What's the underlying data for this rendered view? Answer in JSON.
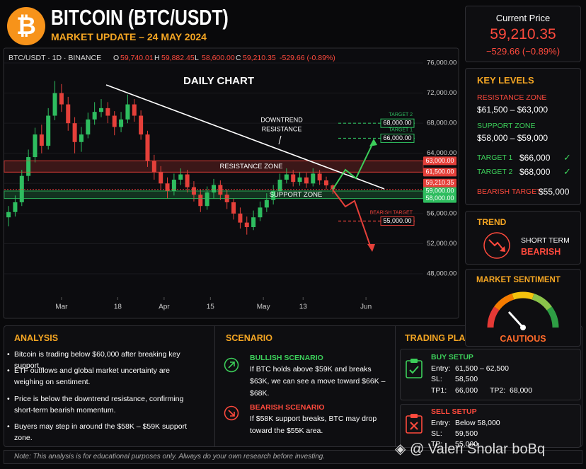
{
  "header": {
    "logo": "₿",
    "title": "BITCOIN (BTC/USDT)",
    "subtitle": "MARKET UPDATE – 24 MAY 2024"
  },
  "current_price": {
    "label": "Current Price",
    "price": "59,210.35",
    "change": "−529.66 (−0.89%)"
  },
  "key_levels": {
    "title": "KEY LEVELS",
    "resistance": {
      "label": "RESISTANCE ZONE",
      "value": "$61,500 – $63,000"
    },
    "support": {
      "label": "SUPPORT ZONE",
      "value": "$58,000 – $59,000"
    },
    "target1": {
      "label": "TARGET 1",
      "value": "$66,000"
    },
    "target2": {
      "label": "TARGET 2",
      "value": "$68,000"
    },
    "bearish": {
      "label": "BEARISH TARGET",
      "value": "$55,000"
    }
  },
  "trend": {
    "title": "TREND",
    "label": "SHORT TERM",
    "value": "BEARISH"
  },
  "sentiment": {
    "title": "MARKET SENTIMENT",
    "value": "CAUTIOUS"
  },
  "analysis": {
    "title": "ANALYSIS",
    "points": [
      "Bitcoin is trading below $60,000 after breaking key support.",
      "ETF outflows and global market uncertainty are weighing on sentiment.",
      "Price is below the downtrend resistance, confirming short-term bearish momentum.",
      "Buyers may step in around the $58K – $59K support zone."
    ]
  },
  "scenario": {
    "title": "SCENARIO",
    "bullish": {
      "title": "BULLISH SCENARIO",
      "text": "If BTC holds above $59K and breaks $63K, we can see a move toward $66K – $68K."
    },
    "bearish": {
      "title": "BEARISH SCENARIO",
      "text": "If $58K support breaks, BTC may drop toward the $55K area."
    }
  },
  "trading_plan": {
    "title": "TRADING PLAN",
    "buy": {
      "title": "BUY SETUP",
      "entry_label": "Entry:",
      "entry": "61,500 – 62,500",
      "sl_label": "SL:",
      "sl": "58,500",
      "tp1_label": "TP1:",
      "tp1": "66,000",
      "tp2_label": "TP2:",
      "tp2": "68,000"
    },
    "sell": {
      "title": "SELL SETUP",
      "entry_label": "Entry:",
      "entry": "Below 58,000",
      "sl_label": "SL:",
      "sl": "59,500",
      "tp_label": "TP:",
      "tp": "55,000"
    }
  },
  "note": "Note: This analysis is for educational purposes only. Always do your own research before investing.",
  "watermark": "@ Valeri Sholar boBq",
  "chart_data": {
    "type": "candlestick",
    "title": "DAILY CHART",
    "symbol": "BTC/USDT · 1D · BINANCE",
    "ohlc": [
      {
        "label": "O",
        "value": "59,740.01"
      },
      {
        "label": "H",
        "value": "59,882.45"
      },
      {
        "label": "L",
        "value": "58,600.00"
      },
      {
        "label": "C",
        "value": "59,210.35"
      }
    ],
    "change": "-529.66 (-0.89%)",
    "up_color": "#2ebd5f",
    "down_color": "#e5403a",
    "x": [
      -16,
      -14,
      -12,
      -10,
      -8,
      -6,
      -4,
      -2,
      0,
      2,
      4,
      6,
      8,
      10,
      12,
      14,
      16,
      18,
      20,
      22,
      24,
      26,
      28,
      30,
      32,
      34,
      36,
      38,
      40,
      42,
      44,
      46,
      48,
      50,
      52,
      54,
      56,
      58,
      60,
      62,
      64,
      66,
      68,
      70,
      72,
      74,
      76,
      78,
      80,
      82
    ],
    "open": [
      55500,
      56200,
      57500,
      61000,
      63500,
      66500,
      65000,
      69000,
      72000,
      70500,
      68000,
      65500,
      66500,
      68500,
      69500,
      70000,
      69000,
      67500,
      68500,
      70500,
      69000,
      66500,
      63000,
      61500,
      60000,
      59000,
      60500,
      61200,
      59500,
      58500,
      57000,
      58800,
      59800,
      58500,
      57500,
      56000,
      54800,
      54200,
      55500,
      56800,
      57800,
      59000,
      60500,
      61200,
      60200,
      60800,
      60000,
      61300,
      60400,
      59740.01
    ],
    "high": [
      57000,
      58400,
      61800,
      64500,
      67400,
      67800,
      70000,
      73600,
      73200,
      71500,
      68800,
      67500,
      69400,
      70800,
      71200,
      70800,
      69600,
      69500,
      71800,
      71200,
      69700,
      67000,
      63800,
      62300,
      60800,
      61300,
      62000,
      61800,
      60300,
      59200,
      59600,
      60600,
      60400,
      59200,
      58000,
      56800,
      55600,
      56400,
      57600,
      58700,
      59800,
      61300,
      62000,
      61800,
      61500,
      61400,
      62000,
      61800,
      60900,
      59882.45
    ],
    "low": [
      54300,
      55600,
      57000,
      60300,
      62800,
      64000,
      64500,
      68400,
      69500,
      67000,
      64000,
      64200,
      66000,
      67800,
      68800,
      68000,
      66400,
      66800,
      68000,
      68200,
      65800,
      62200,
      60500,
      59200,
      58000,
      58400,
      59800,
      58800,
      57600,
      56200,
      56500,
      58000,
      57800,
      56600,
      55200,
      54000,
      53200,
      53800,
      55000,
      56200,
      57200,
      58500,
      60000,
      59600,
      59700,
      59400,
      59600,
      59800,
      59200,
      58600
    ],
    "close": [
      56200,
      57500,
      61000,
      63500,
      66500,
      65000,
      69000,
      72000,
      70500,
      68000,
      65500,
      66500,
      68500,
      69500,
      70000,
      69000,
      67500,
      68500,
      70500,
      69000,
      66500,
      63000,
      61500,
      60000,
      59000,
      60500,
      61200,
      59500,
      58500,
      57000,
      58800,
      59800,
      58500,
      57500,
      56000,
      54800,
      54200,
      55500,
      56800,
      57800,
      59000,
      60500,
      61200,
      60200,
      60800,
      60000,
      61300,
      60400,
      59740.01,
      59210.35
    ],
    "xlim": [
      -17.3,
      109.3
    ],
    "xticks": [
      {
        "value": 0,
        "label": "Mar"
      },
      {
        "value": 17,
        "label": "18"
      },
      {
        "value": 31,
        "label": "Apr"
      },
      {
        "value": 45,
        "label": "15"
      },
      {
        "value": 61,
        "label": "May"
      },
      {
        "value": 73,
        "label": "13"
      },
      {
        "value": 92,
        "label": "Jun"
      }
    ],
    "ylim": [
      44900,
      77600
    ],
    "yticks": [
      {
        "value": 48000,
        "label": "48,000.00"
      },
      {
        "value": 52000,
        "label": "52,000.00"
      },
      {
        "value": 56000,
        "label": "56,000.00"
      },
      {
        "value": 60000,
        "label": "60,000.00"
      },
      {
        "value": 64000,
        "label": "64,000.00"
      },
      {
        "value": 68000,
        "label": "68,000.00"
      },
      {
        "value": 72000,
        "label": "72,000.00"
      },
      {
        "value": 76000,
        "label": "76,000.00"
      }
    ],
    "zones": [
      {
        "name": "RESISTANCE ZONE",
        "low": 61500,
        "high": 63000,
        "color": "#e5403a"
      },
      {
        "name": "SUPPORT ZONE",
        "low": 58000,
        "high": 59000,
        "color": "#2ebd5f"
      }
    ],
    "levels": [
      {
        "value": 63000,
        "label": "63,000.00",
        "color": "#e5403a"
      },
      {
        "value": 61500,
        "label": "61,500.00",
        "color": "#e5403a"
      },
      {
        "value": 59000,
        "label": "59,000.00",
        "color": "#2ebd5f"
      },
      {
        "value": 58000,
        "label": "58,000.00",
        "color": "#2ebd5f"
      },
      {
        "value": 68000,
        "label": "68,000.00",
        "name": "TARGET 2",
        "color": "#2ebd5f"
      },
      {
        "value": 66000,
        "label": "66,000.00",
        "name": "TARGET 1",
        "color": "#2ebd5f"
      },
      {
        "value": 55000,
        "label": "55,000.00",
        "name": "BEARISH TARGET",
        "color": "#e5403a"
      }
    ],
    "last_price": {
      "value": 59210.35,
      "label": "59,210.35",
      "color": "#e5403a"
    },
    "trendline_label": [
      "DOWNTREND",
      "RESISTANCE"
    ]
  }
}
